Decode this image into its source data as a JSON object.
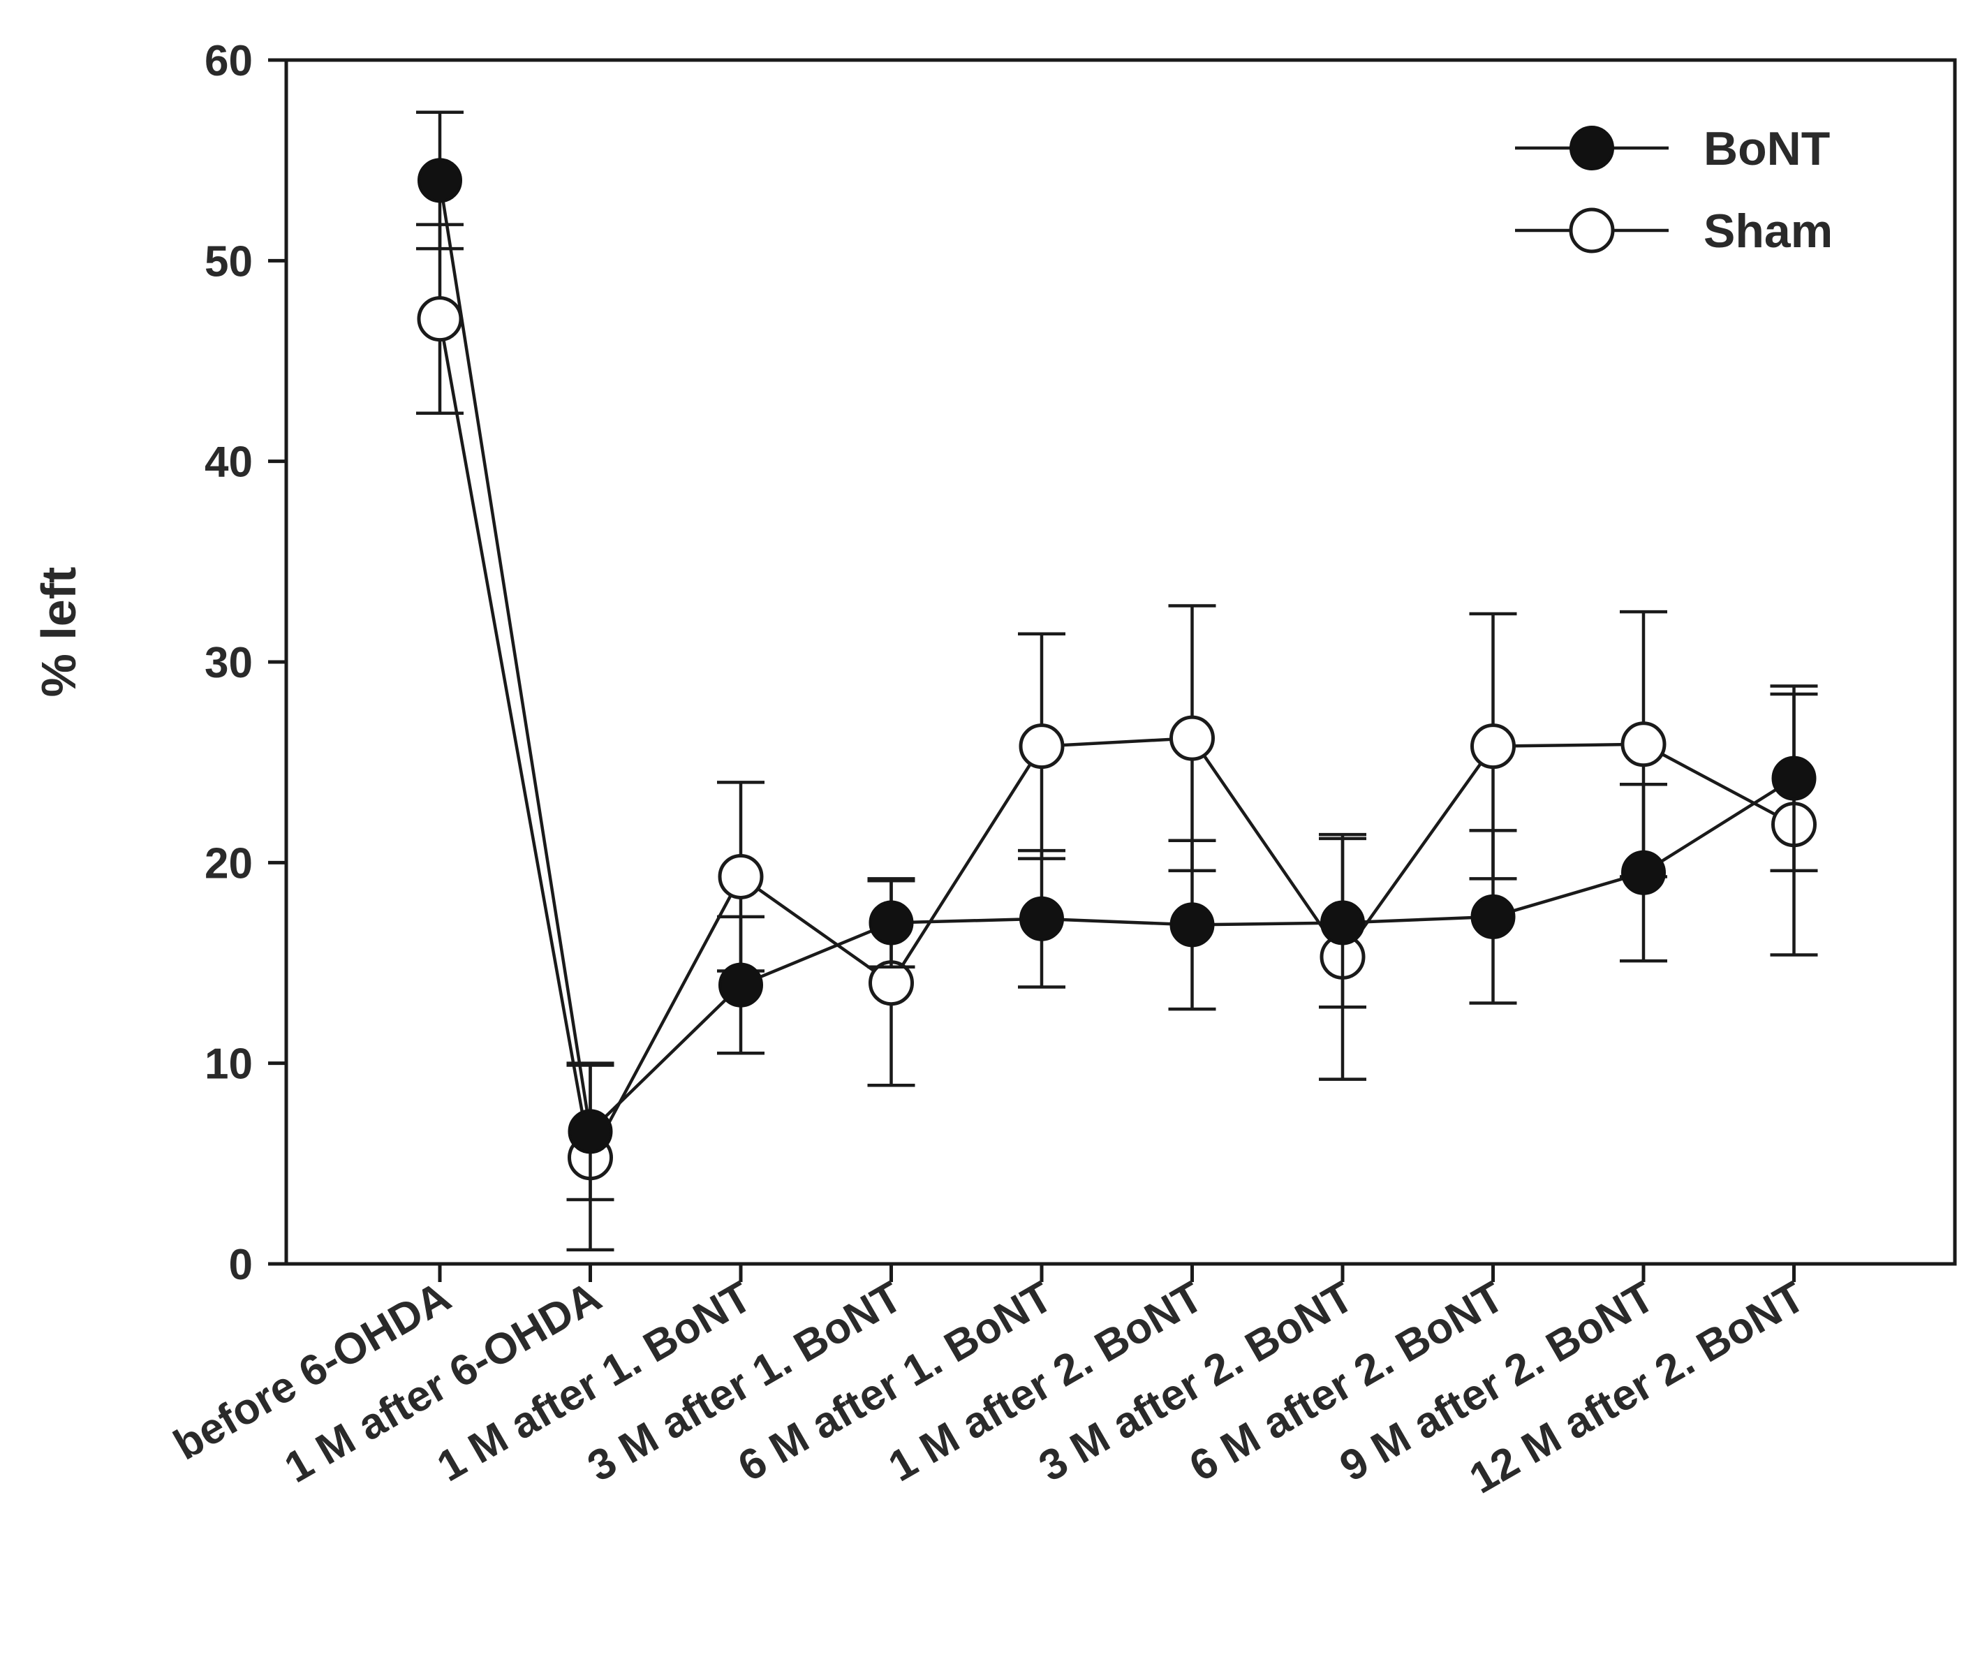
{
  "chart_data": {
    "type": "line",
    "title": "",
    "xlabel": "",
    "ylabel": "% left",
    "ylim": [
      0,
      60
    ],
    "yticks": [
      0,
      10,
      20,
      30,
      40,
      50,
      60
    ],
    "grid": false,
    "legend_position": "top-right",
    "categories": [
      "before 6-OHDA",
      "1 M after 6-OHDA",
      "1 M after 1. BoNT",
      "3 M after 1. BoNT",
      "6 M after 1. BoNT",
      "1 M after 2. BoNT",
      "3 M after 2. BoNT",
      "6 M after 2. BoNT",
      "9 M after 2. BoNT",
      "12 M after 2. BoNT"
    ],
    "series": [
      {
        "name": "BoNT",
        "marker": "filled-circle",
        "values": [
          54.0,
          6.6,
          13.9,
          17.0,
          17.2,
          16.9,
          17.0,
          17.3,
          19.5,
          24.2
        ],
        "error": [
          3.4,
          3.4,
          3.4,
          2.2,
          3.4,
          4.2,
          4.2,
          4.3,
          4.4,
          4.6
        ]
      },
      {
        "name": "Sham",
        "marker": "open-circle",
        "values": [
          47.1,
          5.3,
          19.3,
          14.0,
          25.8,
          26.2,
          15.3,
          25.8,
          25.9,
          21.9
        ],
        "error": [
          4.7,
          4.6,
          4.7,
          5.1,
          5.6,
          6.6,
          6.1,
          6.6,
          6.6,
          6.5
        ]
      }
    ]
  },
  "colors": {
    "axis": "#1a1a1a",
    "bont_marker": "#111111",
    "sham_marker_fill": "#ffffff",
    "text": "#2a2a2a"
  }
}
